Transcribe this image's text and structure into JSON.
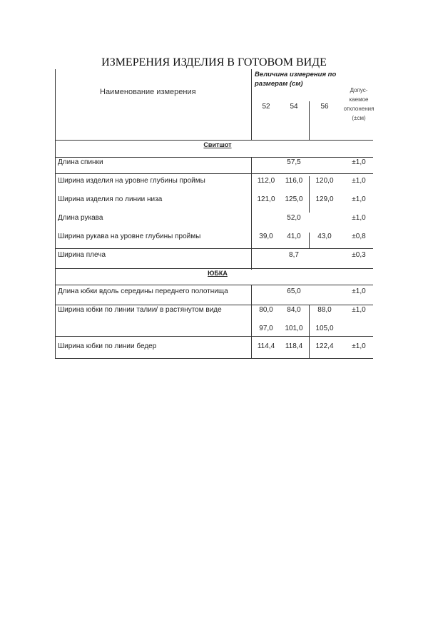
{
  "title": "ИЗМЕРЕНИЯ ИЗДЕЛИЯ В ГОТОВОМ ВИДЕ",
  "header": {
    "name": "Наименование измерения",
    "sizes_label": "Величина измерения по размерам (см)",
    "sizes_label_1": "Величина измерения по",
    "sizes_label_2": "размерам (см)",
    "sizes": [
      "52",
      "54",
      "56"
    ],
    "tolerance_1": "Допус-",
    "tolerance_2": "каемое",
    "tolerance_3": "отклонения",
    "tolerance_4": "(±см)"
  },
  "sections": [
    {
      "title": "Свитшот",
      "rows": [
        {
          "name": "Длина спинки",
          "values": [
            "57,5"
          ],
          "tol": "±1,0"
        },
        {
          "name": "Ширина изделия на уровне глубины проймы",
          "values": [
            "112,0",
            "116,0",
            "120,0"
          ],
          "tol": "±1,0"
        },
        {
          "name": "Ширина изделия по линии низа",
          "values": [
            "121,0",
            "125,0",
            "129,0"
          ],
          "tol": "±1,0"
        },
        {
          "name": "Длина рукава",
          "values": [
            "52,0"
          ],
          "tol": "±1,0"
        },
        {
          "name": "Ширина рукава на уровне глубины проймы",
          "values": [
            "39,0",
            "41,0",
            "43,0"
          ],
          "tol": "±0,8"
        },
        {
          "name": "Ширина плеча",
          "values": [
            "8,7"
          ],
          "tol": "±0,3"
        }
      ]
    },
    {
      "title": "ЮБКА",
      "rows": [
        {
          "name": "Длина юбки  вдоль середины переднего полотнища",
          "values": [
            "65,0"
          ],
          "tol": "±1,0"
        },
        {
          "name": "Ширина юбки по линии талии/ в растянутом виде",
          "values": [
            "80,0",
            "84,0",
            "88,0"
          ],
          "values2": [
            "97,0",
            "101,0",
            "105,0"
          ],
          "tol": "±1,0"
        },
        {
          "name": "Ширина юбки по линии бедер",
          "values": [
            "114,4",
            "118,4",
            "122,4"
          ],
          "tol": "±1,0"
        }
      ]
    }
  ]
}
